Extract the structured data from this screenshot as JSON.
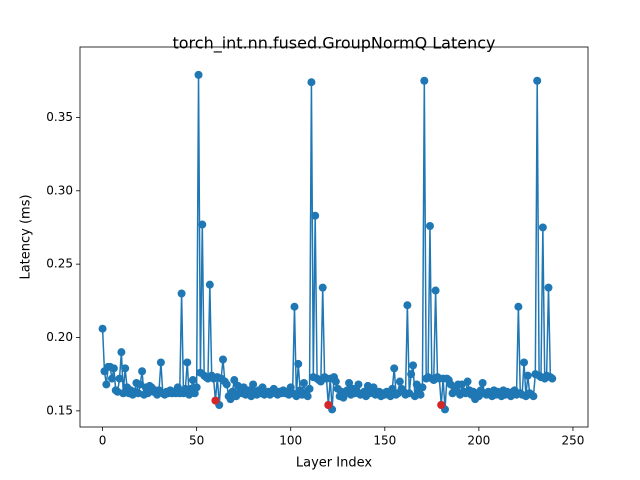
{
  "chart_data": {
    "type": "line",
    "title": "torch_int.nn.fused.GroupNormQ Latency",
    "x_label": "Layer Index",
    "y_label": "Latency (ms)",
    "xlim": [
      -12,
      258
    ],
    "ylim": [
      0.139,
      0.398
    ],
    "xticks": [
      0,
      50,
      100,
      150,
      200,
      250
    ],
    "yticks": [
      0.15,
      {
        "value": 0.2,
        "label": "0.20"
      },
      0.25,
      {
        "value": 0.3,
        "label": "0.30"
      },
      0.35
    ],
    "series": [
      {
        "color": "#1f77b4",
        "x": [
          0,
          1,
          2,
          3,
          4,
          5,
          6,
          7,
          8,
          9,
          10,
          11,
          12,
          13,
          14,
          15,
          16,
          17,
          18,
          19,
          20,
          21,
          22,
          23,
          24,
          25,
          26,
          27,
          28,
          29,
          30,
          31,
          32,
          33,
          34,
          35,
          36,
          37,
          38,
          39,
          40,
          41,
          42,
          43,
          44,
          45,
          46,
          47,
          48,
          49,
          50,
          51,
          52,
          53,
          54,
          55,
          56,
          57,
          58,
          59,
          60,
          61,
          62,
          63,
          64,
          65,
          66,
          67,
          68,
          69,
          70,
          71,
          72,
          73,
          74,
          75,
          76,
          77,
          78,
          79,
          80,
          81,
          82,
          83,
          84,
          85,
          86,
          87,
          88,
          89,
          90,
          91,
          92,
          93,
          94,
          95,
          96,
          97,
          98,
          99,
          100,
          101,
          102,
          103,
          104,
          105,
          106,
          107,
          108,
          109,
          110,
          111,
          112,
          113,
          114,
          115,
          116,
          117,
          118,
          119,
          120,
          121,
          122,
          123,
          124,
          125,
          126,
          127,
          128,
          129,
          130,
          131,
          132,
          133,
          134,
          135,
          136,
          137,
          138,
          139,
          140,
          141,
          142,
          143,
          144,
          145,
          146,
          147,
          148,
          149,
          150,
          151,
          152,
          153,
          154,
          155,
          156,
          157,
          158,
          159,
          160,
          161,
          162,
          163,
          164,
          165,
          166,
          167,
          168,
          169,
          170,
          171,
          172,
          173,
          174,
          175,
          176,
          177,
          178,
          179,
          180,
          181,
          182,
          183,
          184,
          185,
          186,
          187,
          188,
          189,
          190,
          191,
          192,
          193,
          194,
          195,
          196,
          197,
          198,
          199,
          200,
          201,
          202,
          203,
          204,
          205,
          206,
          207,
          208,
          209,
          210,
          211,
          212,
          213,
          214,
          215,
          216,
          217,
          218,
          219,
          220,
          221,
          222,
          223,
          224,
          225,
          226,
          227,
          228,
          229,
          230,
          231,
          232,
          233,
          234,
          235,
          236,
          237,
          238,
          239
        ],
        "values": [
          0.206,
          0.177,
          0.168,
          0.18,
          0.18,
          0.172,
          0.179,
          0.164,
          0.163,
          0.172,
          0.19,
          0.162,
          0.179,
          0.166,
          0.162,
          0.164,
          0.161,
          0.163,
          0.169,
          0.162,
          0.168,
          0.177,
          0.161,
          0.166,
          0.162,
          0.167,
          0.166,
          0.163,
          0.164,
          0.161,
          0.164,
          0.183,
          0.162,
          0.161,
          0.163,
          0.162,
          0.164,
          0.162,
          0.163,
          0.162,
          0.166,
          0.162,
          0.23,
          0.162,
          0.165,
          0.183,
          0.161,
          0.165,
          0.171,
          0.162,
          0.166,
          0.379,
          0.176,
          0.277,
          0.174,
          0.173,
          0.172,
          0.236,
          0.174,
          0.172,
          0.157,
          0.173,
          0.154,
          0.172,
          0.185,
          0.17,
          0.168,
          0.16,
          0.158,
          0.163,
          0.171,
          0.16,
          0.167,
          0.163,
          0.162,
          0.166,
          0.161,
          0.162,
          0.164,
          0.16,
          0.168,
          0.163,
          0.161,
          0.164,
          0.162,
          0.166,
          0.161,
          0.162,
          0.163,
          0.161,
          0.163,
          0.165,
          0.162,
          0.161,
          0.163,
          0.162,
          0.164,
          0.162,
          0.163,
          0.161,
          0.166,
          0.162,
          0.221,
          0.16,
          0.182,
          0.164,
          0.161,
          0.169,
          0.162,
          0.16,
          0.165,
          0.374,
          0.173,
          0.283,
          0.172,
          0.171,
          0.17,
          0.234,
          0.173,
          0.172,
          0.154,
          0.172,
          0.151,
          0.173,
          0.17,
          0.165,
          0.16,
          0.163,
          0.159,
          0.162,
          0.164,
          0.169,
          0.161,
          0.165,
          0.162,
          0.163,
          0.168,
          0.161,
          0.162,
          0.163,
          0.16,
          0.167,
          0.162,
          0.164,
          0.166,
          0.161,
          0.162,
          0.163,
          0.16,
          0.162,
          0.161,
          0.163,
          0.162,
          0.16,
          0.165,
          0.179,
          0.161,
          0.162,
          0.17,
          0.165,
          0.163,
          0.161,
          0.222,
          0.162,
          0.175,
          0.181,
          0.16,
          0.168,
          0.163,
          0.161,
          0.166,
          0.375,
          0.172,
          0.173,
          0.276,
          0.172,
          0.171,
          0.232,
          0.173,
          0.172,
          0.154,
          0.172,
          0.151,
          0.172,
          0.171,
          0.168,
          0.162,
          0.166,
          0.164,
          0.168,
          0.161,
          0.168,
          0.163,
          0.162,
          0.17,
          0.164,
          0.161,
          0.163,
          0.158,
          0.162,
          0.16,
          0.164,
          0.169,
          0.162,
          0.161,
          0.163,
          0.162,
          0.16,
          0.164,
          0.161,
          0.163,
          0.162,
          0.16,
          0.164,
          0.161,
          0.163,
          0.162,
          0.16,
          0.163,
          0.164,
          0.161,
          0.221,
          0.162,
          0.161,
          0.183,
          0.16,
          0.174,
          0.162,
          0.161,
          0.16,
          0.175,
          0.375,
          0.174,
          0.173,
          0.275,
          0.172,
          0.174,
          0.234,
          0.173,
          0.172
        ]
      },
      {
        "color": "#d62728",
        "markers_only": true,
        "x": [
          60,
          120,
          180
        ],
        "values": [
          0.157,
          0.154,
          0.154
        ]
      }
    ]
  }
}
